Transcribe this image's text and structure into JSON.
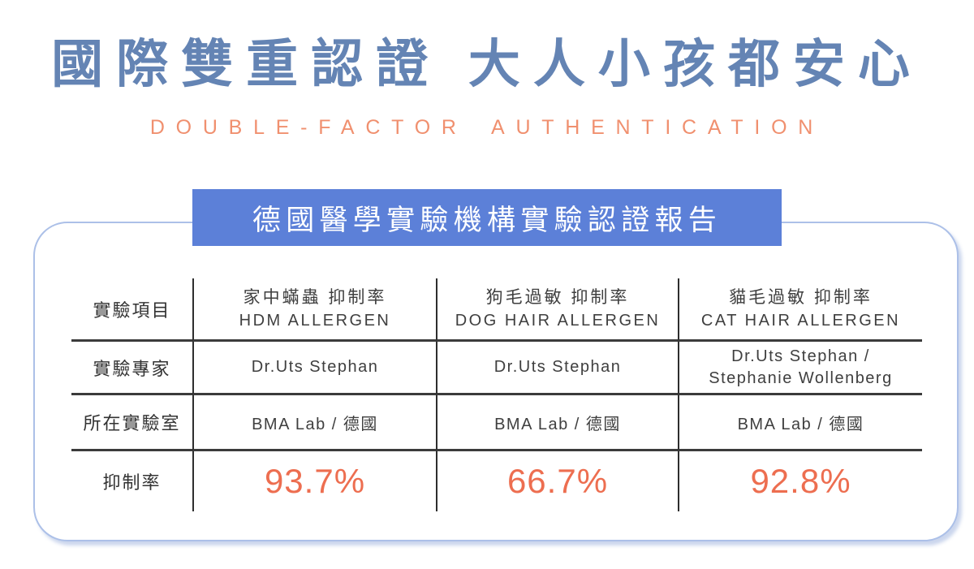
{
  "header": {
    "title": "國際雙重認證 大人小孩都安心",
    "subtitle": "DOUBLE-FACTOR AUTHENTICATION"
  },
  "banner": {
    "text": "德國醫學實驗機構實驗認證報告"
  },
  "table": {
    "row_labels": [
      "實驗項目",
      "實驗專家",
      "所在實驗室",
      "抑制率"
    ],
    "columns": [
      {
        "item_zh": "家中蟎蟲 抑制率",
        "item_en": "HDM ALLERGEN",
        "expert": "Dr.Uts Stephan",
        "lab": "BMA Lab / 德國",
        "rate": "93.7%"
      },
      {
        "item_zh": "狗毛過敏 抑制率",
        "item_en": "DOG HAIR ALLERGEN",
        "expert": "Dr.Uts Stephan",
        "lab": "BMA Lab / 德國",
        "rate": "66.7%"
      },
      {
        "item_zh": "貓毛過敏 抑制率",
        "item_en": "CAT HAIR ALLERGEN",
        "expert": "Dr.Uts Stephan / Stephanie Wollenberg",
        "lab": "BMA Lab / 德國",
        "rate": "92.8%"
      }
    ]
  },
  "colors": {
    "heading_blue": "#6484B4",
    "banner_blue": "#5C80D8",
    "subtitle_orange": "#F0906F",
    "rate_orange": "#ED6E50",
    "card_border_blue": "#ACC0E8",
    "table_line_dark": "#333333"
  }
}
